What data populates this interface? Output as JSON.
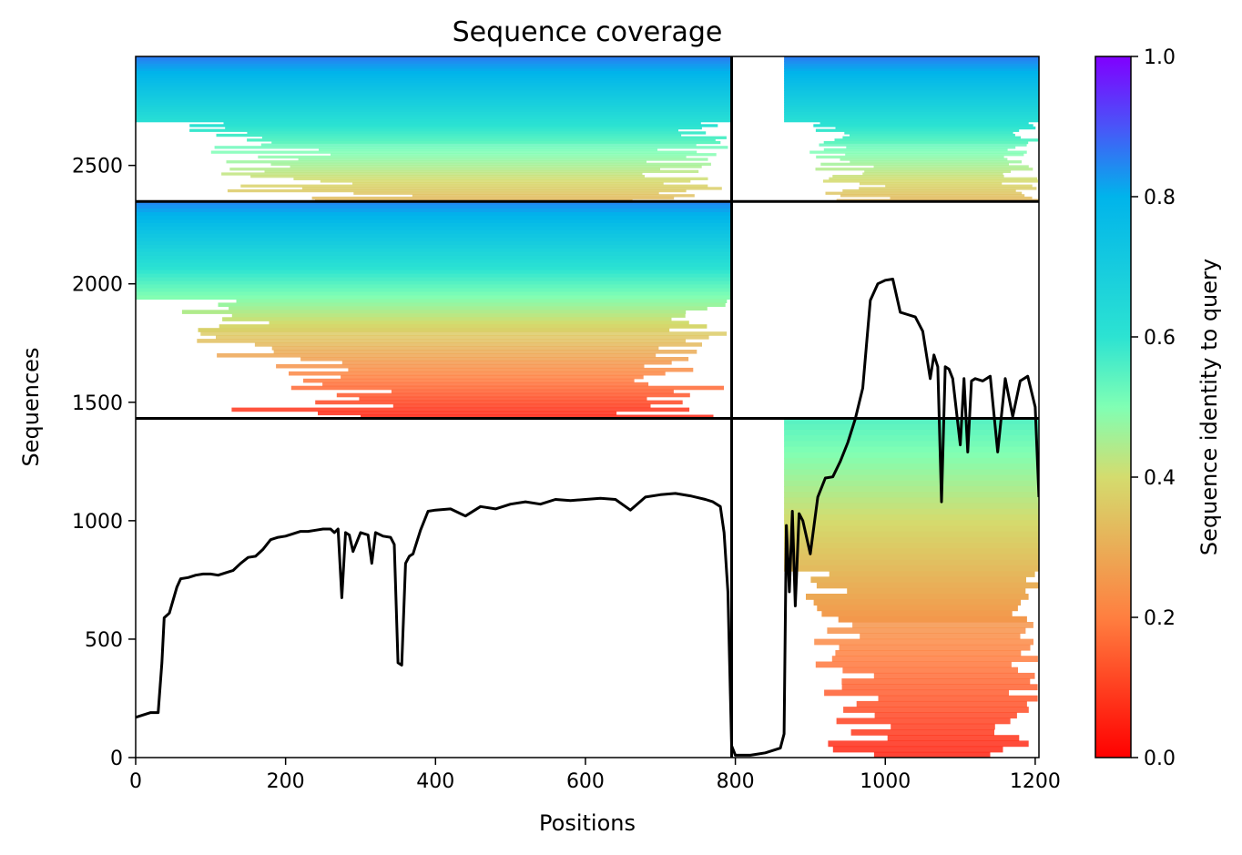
{
  "chart_data": {
    "type": "heatmap",
    "title": "Sequence coverage",
    "xlabel": "Positions",
    "ylabel": "Sequences",
    "xlim": [
      0,
      1205
    ],
    "ylim": [
      0,
      2960
    ],
    "xticks": [
      0,
      200,
      400,
      600,
      800,
      1000,
      1200
    ],
    "yticks": [
      0,
      500,
      1000,
      1500,
      2000,
      2500
    ],
    "colormap": "rainbow_r",
    "colorbar": {
      "label": "Sequence identity to query",
      "range": [
        0,
        1
      ],
      "ticks": [
        0.0,
        0.2,
        0.4,
        0.6,
        0.8,
        1.0
      ],
      "tick_labels": [
        "0.0",
        "0.2",
        "0.4",
        "0.6",
        "0.8",
        "1.0"
      ]
    },
    "chain_boundary_x": 795,
    "group_boundaries_y": [
      1432,
      2348
    ],
    "blocks": [
      {
        "name": "chainA-group1",
        "x0": 0,
        "x1": 795,
        "y0": 2348,
        "y1": 2960,
        "identity_top": 0.86,
        "identity_bottom": 0.32
      },
      {
        "name": "chainB-group1",
        "x0": 865,
        "x1": 1205,
        "y0": 2348,
        "y1": 2960,
        "identity_top": 0.86,
        "identity_bottom": 0.32
      },
      {
        "name": "chainA-group2",
        "x0": 0,
        "x1": 795,
        "y0": 1432,
        "y1": 2348,
        "identity_top": 0.85,
        "identity_bottom": 0.05
      },
      {
        "name": "chainB-group3",
        "x0": 865,
        "x1": 1205,
        "y0": 0,
        "y1": 1432,
        "identity_top": 0.55,
        "identity_bottom": 0.05
      }
    ],
    "coverage_line": {
      "x": [
        0,
        10,
        20,
        30,
        35,
        38,
        45,
        55,
        60,
        70,
        80,
        90,
        100,
        110,
        120,
        130,
        140,
        150,
        160,
        170,
        180,
        190,
        200,
        210,
        220,
        230,
        240,
        250,
        260,
        265,
        270,
        275,
        280,
        285,
        290,
        300,
        310,
        315,
        320,
        330,
        340,
        345,
        350,
        355,
        360,
        365,
        370,
        380,
        390,
        400,
        420,
        440,
        460,
        480,
        500,
        520,
        540,
        560,
        580,
        600,
        620,
        640,
        660,
        680,
        700,
        720,
        740,
        760,
        770,
        780,
        785,
        790,
        795,
        800,
        810,
        820,
        830,
        840,
        850,
        860,
        865,
        868,
        872,
        876,
        880,
        885,
        890,
        900,
        910,
        920,
        930,
        940,
        950,
        960,
        970,
        980,
        990,
        1000,
        1010,
        1020,
        1030,
        1040,
        1050,
        1060,
        1065,
        1070,
        1075,
        1080,
        1085,
        1090,
        1100,
        1105,
        1110,
        1115,
        1120,
        1130,
        1140,
        1150,
        1160,
        1170,
        1180,
        1190,
        1200,
        1205
      ],
      "y": [
        170,
        180,
        190,
        190,
        400,
        590,
        610,
        720,
        755,
        760,
        770,
        775,
        775,
        770,
        780,
        790,
        820,
        845,
        850,
        880,
        920,
        930,
        935,
        945,
        955,
        955,
        960,
        965,
        965,
        950,
        965,
        675,
        950,
        940,
        870,
        950,
        940,
        820,
        950,
        935,
        930,
        900,
        400,
        390,
        820,
        850,
        860,
        960,
        1040,
        1045,
        1050,
        1020,
        1060,
        1050,
        1070,
        1080,
        1070,
        1090,
        1085,
        1090,
        1095,
        1090,
        1045,
        1100,
        1110,
        1115,
        1105,
        1090,
        1080,
        1060,
        950,
        700,
        50,
        10,
        10,
        10,
        15,
        20,
        30,
        40,
        100,
        980,
        700,
        1040,
        640,
        1030,
        1000,
        860,
        1100,
        1180,
        1185,
        1250,
        1330,
        1430,
        1560,
        1930,
        2000,
        2015,
        2020,
        1880,
        1870,
        1860,
        1800,
        1600,
        1700,
        1650,
        1080,
        1650,
        1640,
        1600,
        1320,
        1600,
        1290,
        1590,
        1600,
        1590,
        1610,
        1290,
        1600,
        1440,
        1590,
        1610,
        1480,
        1100
      ]
    }
  }
}
